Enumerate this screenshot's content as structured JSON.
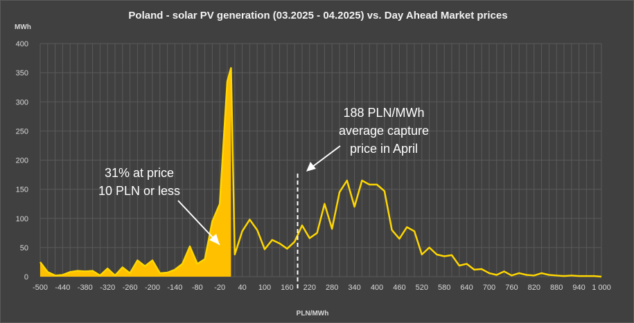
{
  "chart_data": {
    "type": "area",
    "title": "Poland - solar PV generation (03.2025 - 04.2025) vs. Day Ahead Market prices",
    "xlabel": "PLN/MWh",
    "ylabel": "MWh",
    "ylim": [
      0,
      400
    ],
    "y_ticks": [
      0,
      50,
      100,
      150,
      200,
      250,
      300,
      350,
      400
    ],
    "x_range": [
      -500,
      1000
    ],
    "x_ticks": [
      -500,
      -440,
      -380,
      -320,
      -260,
      -200,
      -140,
      -80,
      -20,
      40,
      100,
      160,
      220,
      280,
      340,
      400,
      460,
      520,
      580,
      640,
      700,
      760,
      820,
      880,
      940,
      1000
    ],
    "x_tick_labels": [
      "-500",
      "-440",
      "-380",
      "-320",
      "-260",
      "-200",
      "-140",
      "-80",
      "-20",
      "40",
      "100",
      "160",
      "220",
      "280",
      "340",
      "400",
      "460",
      "520",
      "580",
      "640",
      "700",
      "760",
      "820",
      "880",
      "940",
      "1 000"
    ],
    "grid": true,
    "series": [
      {
        "name": "solar PV generation",
        "color": "#FFD700",
        "fill_color": "#FFC000",
        "fill_until_x": 10,
        "x": [
          -500,
          -480,
          -460,
          -440,
          -420,
          -400,
          -380,
          -360,
          -340,
          -320,
          -300,
          -280,
          -260,
          -240,
          -220,
          -200,
          -180,
          -160,
          -140,
          -120,
          -100,
          -80,
          -60,
          -40,
          -20,
          0,
          10,
          20,
          40,
          60,
          80,
          100,
          120,
          140,
          160,
          180,
          200,
          220,
          240,
          260,
          280,
          300,
          320,
          340,
          360,
          380,
          400,
          420,
          440,
          460,
          480,
          500,
          520,
          540,
          560,
          580,
          600,
          620,
          640,
          660,
          680,
          700,
          720,
          740,
          760,
          780,
          800,
          820,
          840,
          860,
          880,
          900,
          920,
          940,
          960,
          980,
          1000
        ],
        "values": [
          25,
          8,
          2,
          3,
          8,
          10,
          9,
          10,
          2,
          14,
          2,
          16,
          6,
          28,
          18,
          28,
          6,
          7,
          12,
          22,
          52,
          22,
          30,
          95,
          125,
          335,
          358,
          38,
          78,
          98,
          80,
          47,
          63,
          57,
          48,
          60,
          88,
          66,
          75,
          125,
          82,
          145,
          165,
          120,
          165,
          158,
          158,
          147,
          80,
          65,
          85,
          78,
          38,
          50,
          38,
          35,
          37,
          19,
          22,
          12,
          13,
          6,
          3,
          9,
          2,
          6,
          3,
          2,
          6,
          3,
          2,
          1,
          2,
          1,
          1,
          1,
          0
        ]
      }
    ],
    "annotations": [
      {
        "id": "low-price-share",
        "lines": [
          "31% at price",
          "10 PLN or less"
        ]
      },
      {
        "id": "capture-price",
        "lines": [
          "188 PLN/MWh",
          "average capture",
          "price in April"
        ],
        "x_value": 188
      }
    ]
  }
}
